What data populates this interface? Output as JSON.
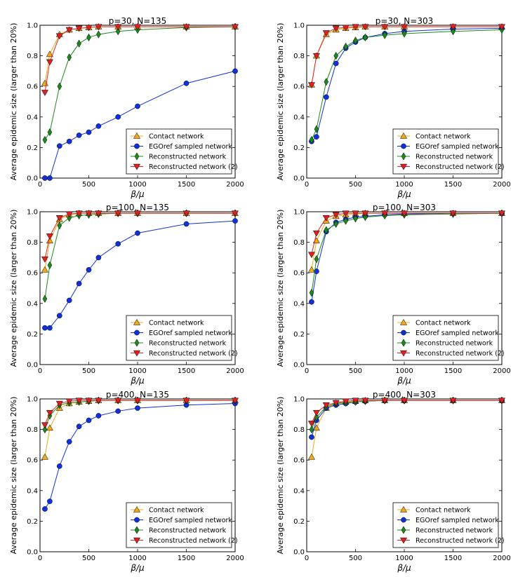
{
  "chart_data": [
    {
      "type": "line",
      "title": "p=30, N=135",
      "xlabel": "β/μ",
      "ylabel": "Average epidemic size (larger than 20%)",
      "xlim": [
        0,
        2000
      ],
      "ylim": [
        0,
        1
      ],
      "xticks": [
        0,
        500,
        1000,
        1500,
        2000
      ],
      "yticks": [
        0.0,
        0.2,
        0.4,
        0.6,
        0.8,
        1.0
      ],
      "legend_position": "lower-right",
      "x": [
        50,
        100,
        200,
        300,
        400,
        500,
        600,
        800,
        1000,
        1500,
        2000
      ],
      "series": [
        {
          "name": "Contact network",
          "color": "#f0a818",
          "marker": "triangle-up",
          "values": [
            0.62,
            0.81,
            0.94,
            0.97,
            0.98,
            0.985,
            0.99,
            0.99,
            0.99,
            0.99,
            0.99
          ]
        },
        {
          "name": "EGOref sampled network",
          "color": "#1030e0",
          "marker": "circle",
          "values": [
            0.0,
            0.0,
            0.21,
            0.24,
            0.28,
            0.3,
            0.34,
            0.4,
            0.47,
            0.62,
            0.7
          ]
        },
        {
          "name": "Reconstructed network",
          "color": "#1a8a1a",
          "marker": "diamond",
          "values": [
            0.25,
            0.3,
            0.6,
            0.79,
            0.88,
            0.92,
            0.94,
            0.96,
            0.97,
            0.985,
            0.99
          ]
        },
        {
          "name": "Reconstructed network (2)",
          "color": "#e02020",
          "marker": "triangle-down",
          "values": [
            0.56,
            0.76,
            0.93,
            0.97,
            0.98,
            0.985,
            0.99,
            0.99,
            0.99,
            0.99,
            0.99
          ]
        }
      ]
    },
    {
      "type": "line",
      "title": "p=30, N=303",
      "xlabel": "β/μ",
      "ylabel": "Average epidemic size (larger than 20%)",
      "xlim": [
        0,
        2000
      ],
      "ylim": [
        0,
        1
      ],
      "xticks": [
        0,
        500,
        1000,
        1500,
        2000
      ],
      "yticks": [
        0.0,
        0.2,
        0.4,
        0.6,
        0.8,
        1.0
      ],
      "legend_position": "lower-right",
      "x": [
        50,
        100,
        200,
        300,
        400,
        500,
        600,
        800,
        1000,
        1500,
        2000
      ],
      "series": [
        {
          "name": "Contact network",
          "color": "#f0a818",
          "marker": "triangle-up",
          "values": [
            0.61,
            0.8,
            0.94,
            0.97,
            0.98,
            0.985,
            0.99,
            0.99,
            0.99,
            0.99,
            0.99
          ]
        },
        {
          "name": "EGOref sampled network",
          "color": "#1030e0",
          "marker": "circle",
          "values": [
            0.24,
            0.27,
            0.53,
            0.75,
            0.85,
            0.89,
            0.92,
            0.945,
            0.96,
            0.975,
            0.98
          ]
        },
        {
          "name": "Reconstructed network",
          "color": "#1a8a1a",
          "marker": "diamond",
          "values": [
            0.25,
            0.32,
            0.63,
            0.8,
            0.86,
            0.9,
            0.92,
            0.935,
            0.945,
            0.96,
            0.97
          ]
        },
        {
          "name": "Reconstructed network (2)",
          "color": "#e02020",
          "marker": "triangle-down",
          "values": [
            0.61,
            0.8,
            0.95,
            0.98,
            0.985,
            0.99,
            0.99,
            0.99,
            0.99,
            0.99,
            0.99
          ]
        }
      ]
    },
    {
      "type": "line",
      "title": "p=100, N=135",
      "xlabel": "β/μ",
      "ylabel": "Average epidemic size (larger than 20%)",
      "xlim": [
        0,
        2000
      ],
      "ylim": [
        0,
        1
      ],
      "xticks": [
        0,
        500,
        1000,
        1500,
        2000
      ],
      "yticks": [
        0.0,
        0.2,
        0.4,
        0.6,
        0.8,
        1.0
      ],
      "legend_position": "lower-right",
      "x": [
        50,
        100,
        200,
        300,
        400,
        500,
        600,
        800,
        1000,
        1500,
        2000
      ],
      "series": [
        {
          "name": "Contact network",
          "color": "#f0a818",
          "marker": "triangle-up",
          "values": [
            0.62,
            0.81,
            0.95,
            0.98,
            0.99,
            0.99,
            0.99,
            0.99,
            0.99,
            0.99,
            0.99
          ]
        },
        {
          "name": "EGOref sampled network",
          "color": "#1030e0",
          "marker": "circle",
          "values": [
            0.24,
            0.24,
            0.32,
            0.42,
            0.53,
            0.62,
            0.7,
            0.79,
            0.86,
            0.92,
            0.94
          ]
        },
        {
          "name": "Reconstructed network",
          "color": "#1a8a1a",
          "marker": "diamond",
          "values": [
            0.43,
            0.65,
            0.91,
            0.96,
            0.975,
            0.98,
            0.985,
            0.99,
            0.99,
            0.99,
            0.99
          ]
        },
        {
          "name": "Reconstructed network (2)",
          "color": "#e02020",
          "marker": "triangle-down",
          "values": [
            0.69,
            0.84,
            0.96,
            0.985,
            0.99,
            0.99,
            0.99,
            0.99,
            0.99,
            0.99,
            0.99
          ]
        }
      ]
    },
    {
      "type": "line",
      "title": "p=100, N=303",
      "xlabel": "β/μ",
      "ylabel": "Average epidemic size (larger than 20%)",
      "xlim": [
        0,
        2000
      ],
      "ylim": [
        0,
        1
      ],
      "xticks": [
        0,
        500,
        1000,
        1500,
        2000
      ],
      "yticks": [
        0.0,
        0.2,
        0.4,
        0.6,
        0.8,
        1.0
      ],
      "legend_position": "lower-right",
      "x": [
        50,
        100,
        200,
        300,
        400,
        500,
        600,
        800,
        1000,
        1500,
        2000
      ],
      "series": [
        {
          "name": "Contact network",
          "color": "#f0a818",
          "marker": "triangle-up",
          "values": [
            0.62,
            0.81,
            0.94,
            0.97,
            0.98,
            0.985,
            0.99,
            0.99,
            0.99,
            0.99,
            0.99
          ]
        },
        {
          "name": "EGOref sampled network",
          "color": "#1030e0",
          "marker": "circle",
          "values": [
            0.41,
            0.61,
            0.87,
            0.93,
            0.95,
            0.965,
            0.97,
            0.98,
            0.985,
            0.99,
            0.99
          ]
        },
        {
          "name": "Reconstructed network",
          "color": "#1a8a1a",
          "marker": "diamond",
          "values": [
            0.47,
            0.69,
            0.88,
            0.92,
            0.94,
            0.955,
            0.965,
            0.975,
            0.98,
            0.985,
            0.99
          ]
        },
        {
          "name": "Reconstructed network (2)",
          "color": "#e02020",
          "marker": "triangle-down",
          "values": [
            0.72,
            0.86,
            0.96,
            0.98,
            0.99,
            0.99,
            0.99,
            0.99,
            0.99,
            0.99,
            0.99
          ]
        }
      ]
    },
    {
      "type": "line",
      "title": "p=400, N=135",
      "xlabel": "β/μ",
      "ylabel": "Average epidemic size (larger than 20%)",
      "xlim": [
        0,
        2000
      ],
      "ylim": [
        0,
        1
      ],
      "xticks": [
        0,
        500,
        1000,
        1500,
        2000
      ],
      "yticks": [
        0.0,
        0.2,
        0.4,
        0.6,
        0.8,
        1.0
      ],
      "legend_position": "lower-right",
      "x": [
        50,
        100,
        200,
        300,
        400,
        500,
        600,
        800,
        1000,
        1500,
        2000
      ],
      "series": [
        {
          "name": "Contact network",
          "color": "#f0a818",
          "marker": "triangle-up",
          "values": [
            0.62,
            0.81,
            0.94,
            0.97,
            0.98,
            0.985,
            0.99,
            0.99,
            0.99,
            0.99,
            0.99
          ]
        },
        {
          "name": "EGOref sampled network",
          "color": "#1030e0",
          "marker": "circle",
          "values": [
            0.28,
            0.33,
            0.56,
            0.72,
            0.82,
            0.86,
            0.89,
            0.92,
            0.94,
            0.96,
            0.97
          ]
        },
        {
          "name": "Reconstructed network",
          "color": "#1a8a1a",
          "marker": "diamond",
          "values": [
            0.8,
            0.89,
            0.96,
            0.975,
            0.98,
            0.985,
            0.99,
            0.99,
            0.99,
            0.99,
            0.99
          ]
        },
        {
          "name": "Reconstructed network (2)",
          "color": "#e02020",
          "marker": "triangle-down",
          "values": [
            0.83,
            0.91,
            0.97,
            0.985,
            0.99,
            0.99,
            0.99,
            0.99,
            0.99,
            0.99,
            0.99
          ]
        }
      ]
    },
    {
      "type": "line",
      "title": "p=400, N=303",
      "xlabel": "β/μ",
      "ylabel": "Average epidemic size (larger than 20%)",
      "xlim": [
        0,
        2000
      ],
      "ylim": [
        0,
        1
      ],
      "xticks": [
        0,
        500,
        1000,
        1500,
        2000
      ],
      "yticks": [
        0.0,
        0.2,
        0.4,
        0.6,
        0.8,
        1.0
      ],
      "legend_position": "lower-right",
      "x": [
        50,
        100,
        200,
        300,
        400,
        500,
        600,
        800,
        1000,
        1500,
        2000
      ],
      "series": [
        {
          "name": "Contact network",
          "color": "#f0a818",
          "marker": "triangle-up",
          "values": [
            0.62,
            0.81,
            0.94,
            0.97,
            0.98,
            0.985,
            0.99,
            0.99,
            0.99,
            0.99,
            0.99
          ]
        },
        {
          "name": "EGOref sampled network",
          "color": "#1030e0",
          "marker": "circle",
          "values": [
            0.75,
            0.86,
            0.94,
            0.96,
            0.97,
            0.98,
            0.985,
            0.99,
            0.99,
            0.99,
            0.99
          ]
        },
        {
          "name": "Reconstructed network",
          "color": "#1a8a1a",
          "marker": "diamond",
          "values": [
            0.8,
            0.88,
            0.95,
            0.97,
            0.975,
            0.98,
            0.985,
            0.99,
            0.99,
            0.99,
            0.99
          ]
        },
        {
          "name": "Reconstructed network (2)",
          "color": "#e02020",
          "marker": "triangle-down",
          "values": [
            0.84,
            0.91,
            0.96,
            0.975,
            0.985,
            0.99,
            0.99,
            0.99,
            0.99,
            0.99,
            0.99
          ]
        }
      ]
    }
  ]
}
